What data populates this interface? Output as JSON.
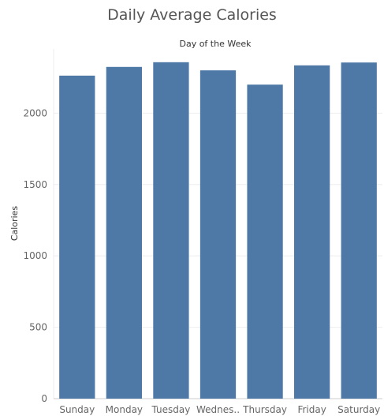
{
  "chart_data": {
    "type": "bar",
    "title": "Daily Average Calories",
    "xlabel": "Day of the Week",
    "ylabel": "Calories",
    "categories": [
      "Sunday",
      "Monday",
      "Tuesday",
      "Wednes..",
      "Thursday",
      "Friday",
      "Saturday"
    ],
    "values": [
      2263,
      2324,
      2357,
      2300,
      2200,
      2335,
      2355
    ],
    "ylim": [
      0,
      2450
    ],
    "yticks": [
      0,
      500,
      1000,
      1500,
      2000
    ],
    "grid": true,
    "colors": {
      "bar": "#4e79a7",
      "grid": "#eeeeee",
      "baseline": "#cccccc"
    }
  }
}
